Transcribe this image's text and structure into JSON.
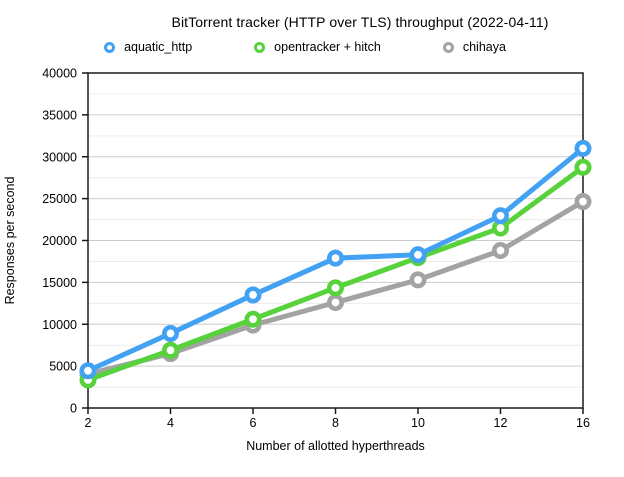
{
  "chart_data": {
    "type": "line",
    "title": "BitTorrent tracker (HTTP over TLS) throughput (2022-04-11)",
    "xlabel": "Number of allotted hyperthreads",
    "ylabel": "Responses per second",
    "categories": [
      "2",
      "4",
      "6",
      "8",
      "10",
      "12",
      "16"
    ],
    "ylim": [
      0,
      40000
    ],
    "y_major_step": 5000,
    "y_minor_step": 2500,
    "y_tick_labels": [
      "0",
      "5000",
      "10000",
      "15000",
      "20000",
      "25000",
      "30000",
      "35000",
      "40000"
    ],
    "grid": true,
    "legend_position": "top",
    "series": [
      {
        "name": "aquatic_http",
        "color": "#42A1F2",
        "values": [
          4450,
          8900,
          13500,
          17900,
          18300,
          22950,
          31000
        ]
      },
      {
        "name": "opentracker + hitch",
        "color": "#57D23B",
        "values": [
          3350,
          6900,
          10600,
          14350,
          17950,
          21500,
          28750
        ]
      },
      {
        "name": "chihaya",
        "color": "#A3A3A3",
        "values": [
          4050,
          6500,
          9900,
          12600,
          15300,
          18800,
          24650
        ]
      }
    ]
  },
  "style_colors": {
    "axis": "#1A1A1A",
    "grid_major": "#CDCDCD",
    "grid_minor": "#ECECEC",
    "marker_fill": "#FFFFFF"
  }
}
